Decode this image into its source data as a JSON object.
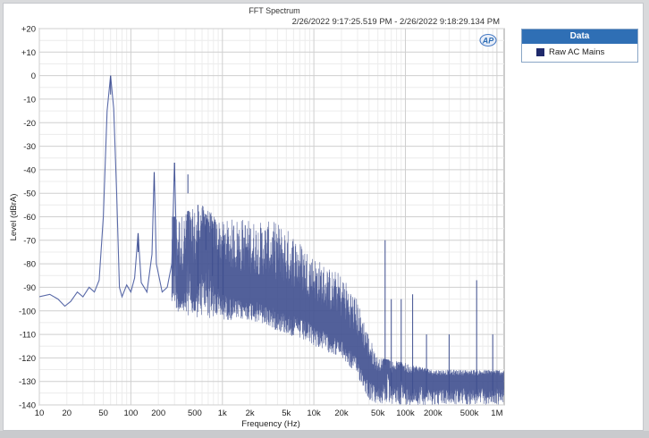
{
  "window": {
    "background": "#d9dadc"
  },
  "logo": {
    "text": "AP",
    "icon": "ap-logo"
  },
  "chart_data": {
    "type": "line",
    "title": "FFT Spectrum",
    "timestamp": "2/26/2022 9:17:25.519 PM - 2/26/2022 9:18:29.134 PM",
    "xlabel": "Frequency (Hz)",
    "ylabel": "Level (dBrA)",
    "xscale": "log",
    "xlim": [
      10,
      1200000
    ],
    "ylim": [
      -140,
      20
    ],
    "grid": true,
    "legend_placement": "right",
    "xticks": [
      {
        "v": 10,
        "t": "10"
      },
      {
        "v": 20,
        "t": "20"
      },
      {
        "v": 50,
        "t": "50"
      },
      {
        "v": 100,
        "t": "100"
      },
      {
        "v": 200,
        "t": "200"
      },
      {
        "v": 500,
        "t": "500"
      },
      {
        "v": 1000,
        "t": "1k"
      },
      {
        "v": 2000,
        "t": "2k"
      },
      {
        "v": 5000,
        "t": "5k"
      },
      {
        "v": 10000,
        "t": "10k"
      },
      {
        "v": 20000,
        "t": "20k"
      },
      {
        "v": 50000,
        "t": "50k"
      },
      {
        "v": 100000,
        "t": "100k"
      },
      {
        "v": 200000,
        "t": "200k"
      },
      {
        "v": 500000,
        "t": "500k"
      },
      {
        "v": 1000000,
        "t": "1M"
      }
    ],
    "yticks": [
      {
        "v": 20,
        "t": "+20"
      },
      {
        "v": 10,
        "t": "+10"
      },
      {
        "v": 0,
        "t": "0"
      },
      {
        "v": -10,
        "t": "-10"
      },
      {
        "v": -20,
        "t": "-20"
      },
      {
        "v": -30,
        "t": "-30"
      },
      {
        "v": -40,
        "t": "-40"
      },
      {
        "v": -50,
        "t": "-50"
      },
      {
        "v": -60,
        "t": "-60"
      },
      {
        "v": -70,
        "t": "-70"
      },
      {
        "v": -80,
        "t": "-80"
      },
      {
        "v": -90,
        "t": "-90"
      },
      {
        "v": -100,
        "t": "-100"
      },
      {
        "v": -110,
        "t": "-110"
      },
      {
        "v": -120,
        "t": "-120"
      },
      {
        "v": -130,
        "t": "-130"
      },
      {
        "v": -140,
        "t": "-140"
      }
    ],
    "series": [
      {
        "name": "Raw AC Mains",
        "color": "#3f4f8f",
        "baseline": [
          [
            10,
            -94
          ],
          [
            13,
            -93
          ],
          [
            16,
            -95
          ],
          [
            19,
            -98
          ],
          [
            22,
            -96
          ],
          [
            26,
            -92
          ],
          [
            30,
            -94
          ],
          [
            35,
            -90
          ],
          [
            40,
            -92
          ],
          [
            45,
            -87
          ],
          [
            50,
            -60
          ],
          [
            55,
            -15
          ],
          [
            60,
            0
          ],
          [
            65,
            -14
          ],
          [
            70,
            -50
          ],
          [
            75,
            -90
          ],
          [
            80,
            -94
          ],
          [
            90,
            -89
          ],
          [
            100,
            -92
          ],
          [
            110,
            -86
          ],
          [
            120,
            -67
          ],
          [
            130,
            -88
          ],
          [
            150,
            -92
          ],
          [
            170,
            -76
          ],
          [
            180,
            -41
          ],
          [
            190,
            -80
          ],
          [
            220,
            -92
          ],
          [
            250,
            -90
          ],
          [
            280,
            -80
          ],
          [
            300,
            -37
          ],
          [
            320,
            -85
          ],
          [
            360,
            -90
          ],
          [
            400,
            -85
          ],
          [
            420,
            -42
          ],
          [
            450,
            -86
          ],
          [
            500,
            -88
          ],
          [
            550,
            -80
          ],
          [
            600,
            -68
          ],
          [
            700,
            -65
          ],
          [
            800,
            -80
          ],
          [
            1000,
            -85
          ],
          [
            1500,
            -90
          ],
          [
            2000,
            -90
          ],
          [
            3000,
            -91
          ],
          [
            5000,
            -95
          ],
          [
            8000,
            -98
          ],
          [
            10000,
            -100
          ],
          [
            15000,
            -105
          ],
          [
            20000,
            -108
          ],
          [
            30000,
            -115
          ],
          [
            40000,
            -124
          ],
          [
            50000,
            -128
          ],
          [
            55000,
            -126
          ],
          [
            60000,
            -115
          ],
          [
            65000,
            -118
          ],
          [
            70000,
            -128
          ],
          [
            80000,
            -126
          ],
          [
            90000,
            -122
          ],
          [
            100000,
            -128
          ],
          [
            150000,
            -126
          ],
          [
            200000,
            -128
          ],
          [
            300000,
            -128
          ],
          [
            500000,
            -128
          ],
          [
            700000,
            -128
          ],
          [
            1200000,
            -128
          ]
        ],
        "noise_floor": [
          [
            300,
            -100
          ],
          [
            500,
            -103
          ],
          [
            1000,
            -104
          ],
          [
            2000,
            -104
          ],
          [
            5000,
            -110
          ],
          [
            10000,
            -115
          ],
          [
            20000,
            -120
          ],
          [
            30000,
            -128
          ],
          [
            40000,
            -138
          ],
          [
            50000,
            -140
          ],
          [
            100000,
            -140
          ],
          [
            1200000,
            -140
          ]
        ],
        "noise_top": [
          [
            300,
            -60
          ],
          [
            600,
            -55
          ],
          [
            1000,
            -62
          ],
          [
            1500,
            -60
          ],
          [
            2500,
            -62
          ],
          [
            4000,
            -62
          ],
          [
            6000,
            -67
          ],
          [
            9000,
            -75
          ],
          [
            15000,
            -82
          ],
          [
            20000,
            -84
          ],
          [
            30000,
            -95
          ],
          [
            40000,
            -110
          ],
          [
            50000,
            -120
          ],
          [
            100000,
            -122
          ],
          [
            200000,
            -125
          ],
          [
            500000,
            -125
          ],
          [
            1200000,
            -125
          ]
        ],
        "peaks": [
          [
            60,
            0
          ],
          [
            120,
            -67
          ],
          [
            180,
            -41
          ],
          [
            300,
            -37
          ],
          [
            420,
            -42
          ],
          [
            540,
            -55
          ],
          [
            660,
            -59
          ],
          [
            780,
            -62
          ],
          [
            900,
            -72
          ],
          [
            1020,
            -68
          ],
          [
            60000,
            -70
          ],
          [
            70000,
            -95
          ],
          [
            90000,
            -95
          ],
          [
            120000,
            -93
          ],
          [
            170000,
            -110
          ],
          [
            300000,
            -110
          ],
          [
            600000,
            -87
          ],
          [
            900000,
            -110
          ]
        ]
      }
    ]
  }
}
